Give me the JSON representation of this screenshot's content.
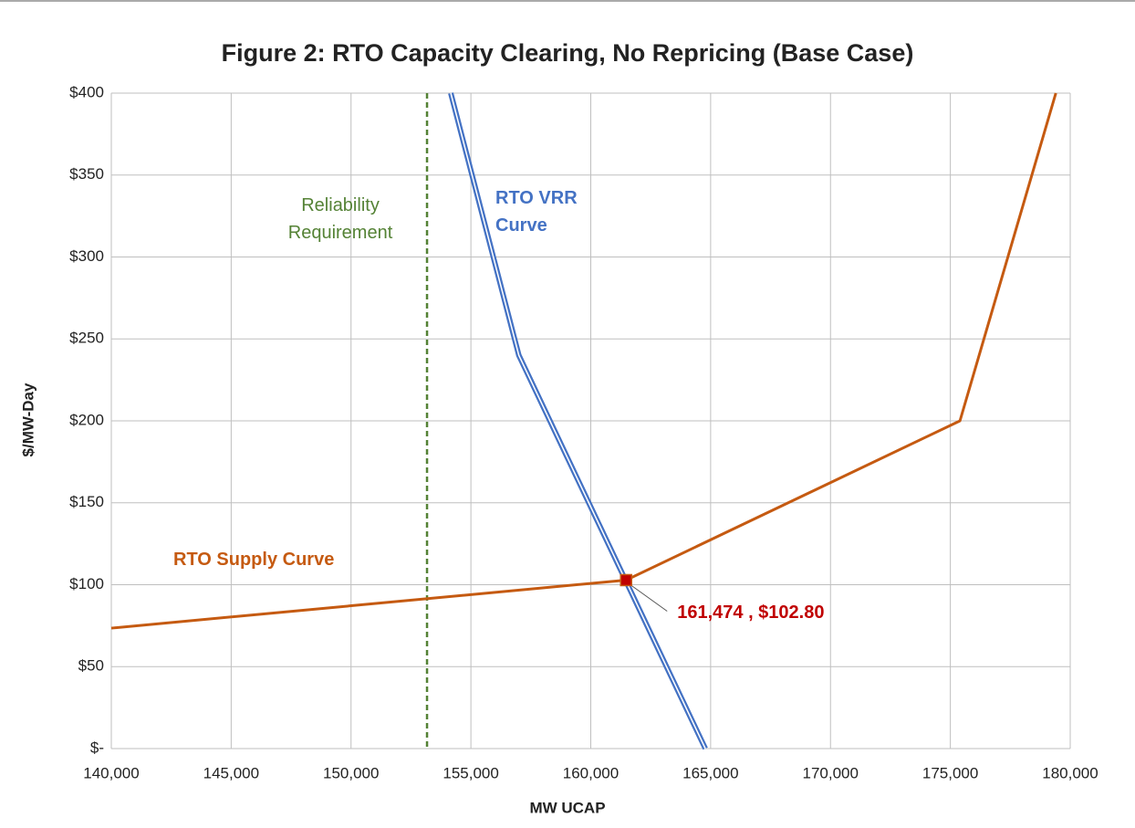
{
  "chart_data": {
    "type": "line",
    "title": "Figure 2: RTO Capacity Clearing, No Repricing (Base Case)",
    "x_label": "MW UCAP",
    "y_label": "$/MW-Day",
    "xlim": [
      140000,
      180000
    ],
    "ylim": [
      0,
      400
    ],
    "xticks": [
      {
        "value": 140000,
        "label": "140,000"
      },
      {
        "value": 145000,
        "label": "145,000"
      },
      {
        "value": 150000,
        "label": "150,000"
      },
      {
        "value": 155000,
        "label": "155,000"
      },
      {
        "value": 160000,
        "label": "160,000"
      },
      {
        "value": 165000,
        "label": "165,000"
      },
      {
        "value": 170000,
        "label": "170,000"
      },
      {
        "value": 175000,
        "label": "175,000"
      },
      {
        "value": 180000,
        "label": "180,000"
      }
    ],
    "yticks": [
      {
        "value": 0,
        "label": "$-"
      },
      {
        "value": 50,
        "label": "$50"
      },
      {
        "value": 100,
        "label": "$100"
      },
      {
        "value": 150,
        "label": "$150"
      },
      {
        "value": 200,
        "label": "$200"
      },
      {
        "value": 250,
        "label": "$250"
      },
      {
        "value": 300,
        "label": "$300"
      },
      {
        "value": 350,
        "label": "$350"
      },
      {
        "value": 400,
        "label": "$400"
      }
    ],
    "grid": true,
    "series": [
      {
        "name": "RTO Supply Curve",
        "color": "#c55a11",
        "x": [
          140000,
          161474,
          175400,
          179400
        ],
        "values": [
          73.5,
          102.8,
          200,
          400
        ]
      },
      {
        "name": "RTO VRR Curve",
        "color": "#4472c4",
        "x": [
          154160,
          157000,
          164780
        ],
        "values": [
          400,
          240,
          0
        ]
      }
    ],
    "vlines": [
      {
        "name": "Reliability Requirement",
        "x": 153170,
        "color": "#548235"
      }
    ],
    "point": {
      "x": 161474,
      "y": 102.8,
      "label": "161,474 ,  $102.80",
      "color": "#c00000"
    }
  }
}
